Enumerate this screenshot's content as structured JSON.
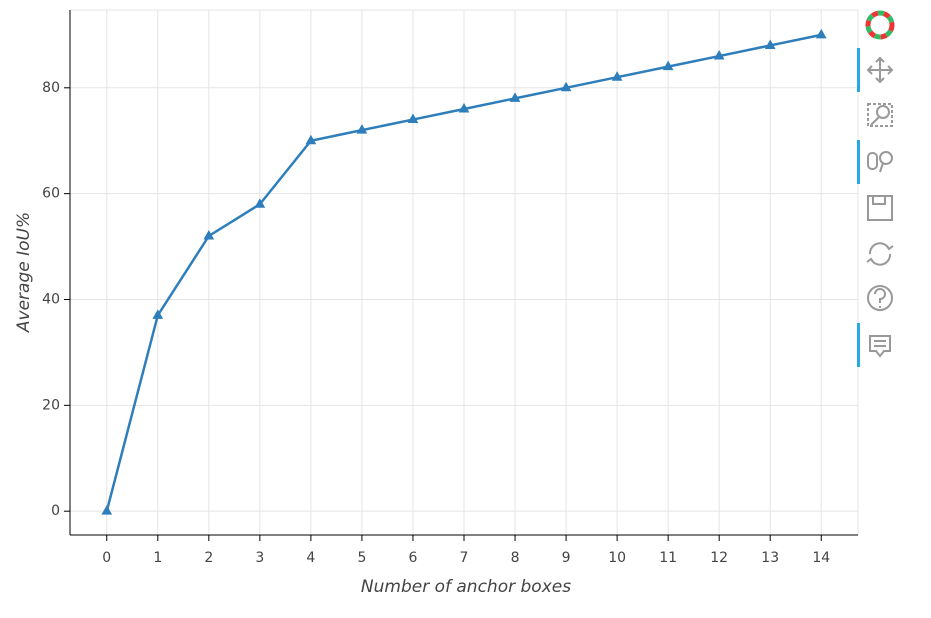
{
  "chart_data": {
    "type": "line",
    "x_label": "Number of anchor boxes",
    "y_label": "Average IoU%",
    "x": [
      0,
      1,
      2,
      3,
      4,
      5,
      6,
      7,
      8,
      9,
      10,
      11,
      12,
      13,
      14
    ],
    "series": [
      {
        "color": "#2e7ebc",
        "values": [
          0,
          37,
          52,
          58,
          70,
          72,
          74,
          76,
          78,
          80,
          82,
          84,
          86,
          88,
          90
        ]
      }
    ],
    "xlim": [
      -0.72,
      14.72
    ],
    "ylim": [
      -4.5,
      94.7
    ],
    "xticks": [
      0,
      1,
      2,
      3,
      4,
      5,
      6,
      7,
      8,
      9,
      10,
      11,
      12,
      13,
      14
    ],
    "yticks": [
      0,
      20,
      40,
      60,
      80
    ],
    "grid": true
  }
}
